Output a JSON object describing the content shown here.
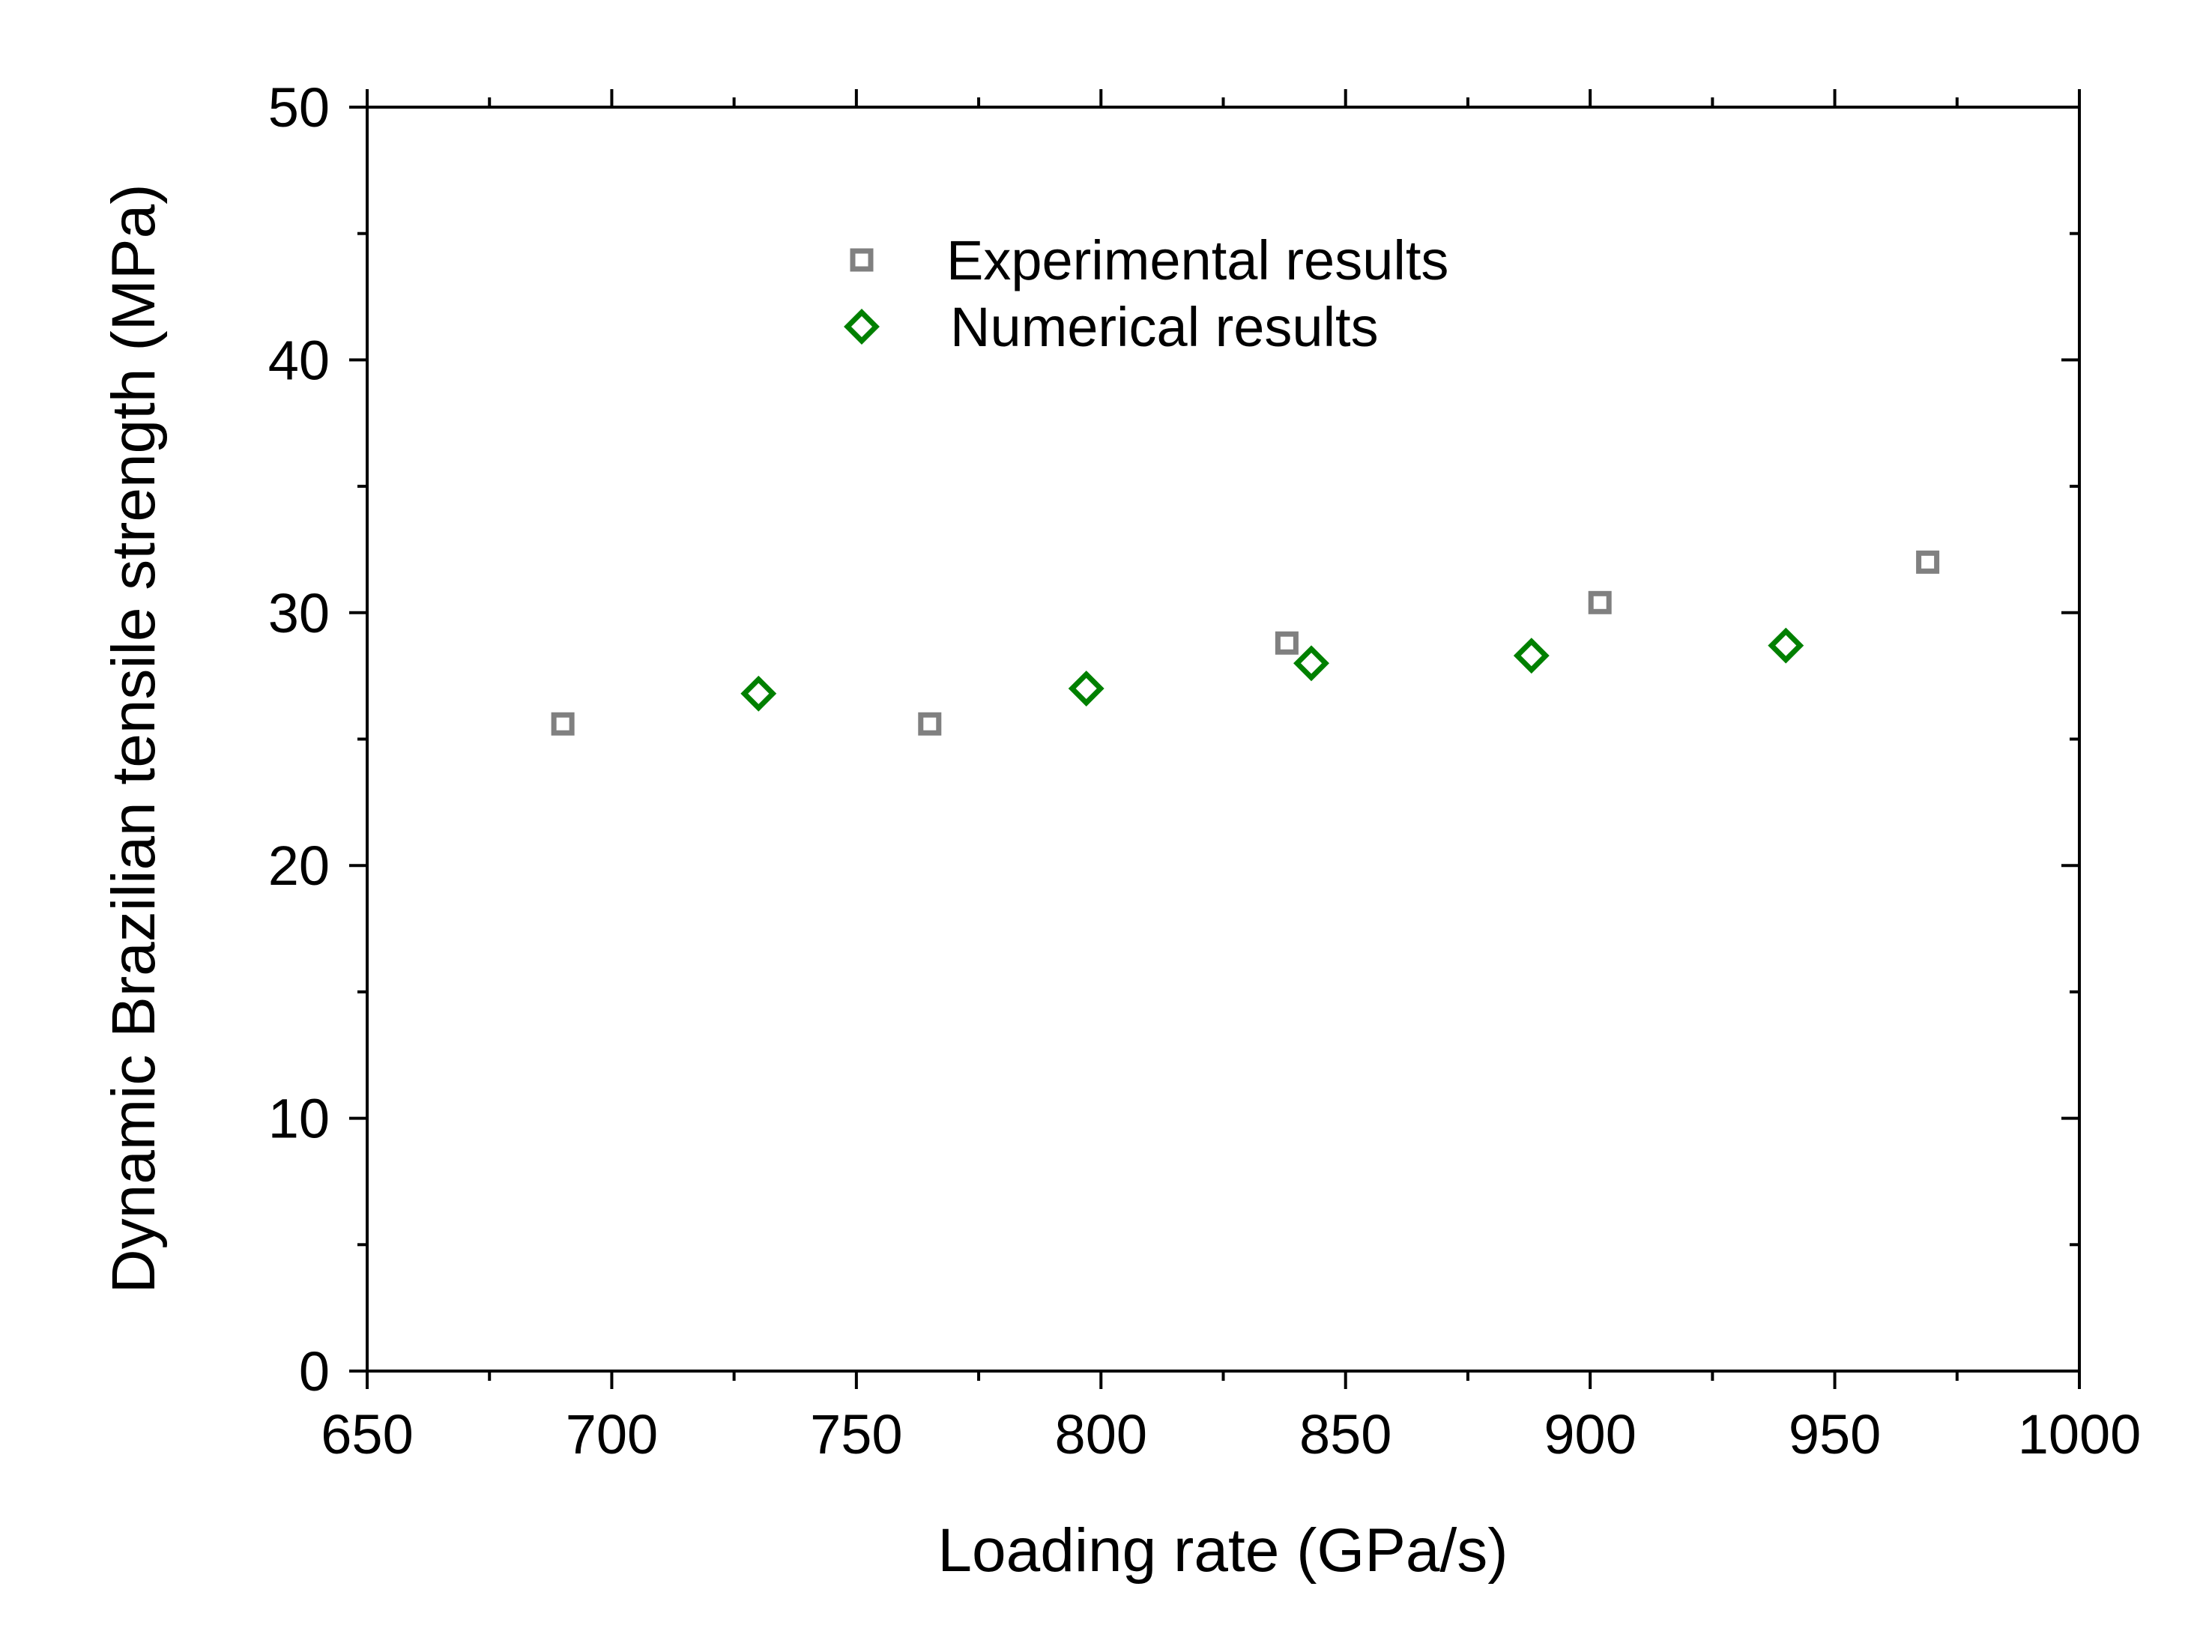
{
  "chart_data": {
    "type": "scatter",
    "title": "",
    "xlabel": "Loading rate (GPa/s)",
    "ylabel": "Dynamic Brazilian tensile strength (MPa)",
    "xlim": [
      650,
      1000
    ],
    "ylim": [
      0,
      50
    ],
    "x_ticks": [
      650,
      700,
      750,
      800,
      850,
      900,
      950,
      1000
    ],
    "y_ticks": [
      0,
      10,
      20,
      30,
      40,
      50
    ],
    "x_tick_labels": [
      "650",
      "700",
      "750",
      "800",
      "850",
      "900",
      "950",
      "1000"
    ],
    "y_tick_labels": [
      "0",
      "10",
      "20",
      "30",
      "40",
      "50"
    ],
    "grid": false,
    "legend_position": "top-center",
    "series": [
      {
        "name": "Experimental results",
        "marker": "square",
        "color": "#808080",
        "x": [
          690,
          765,
          838,
          902,
          969
        ],
        "y": [
          25.6,
          25.6,
          28.8,
          30.4,
          32.0
        ]
      },
      {
        "name": "Numerical results",
        "marker": "diamond",
        "color": "#008000",
        "x": [
          730,
          797,
          843,
          888,
          940
        ],
        "y": [
          26.8,
          27.0,
          28.0,
          28.3,
          28.7
        ]
      }
    ]
  }
}
